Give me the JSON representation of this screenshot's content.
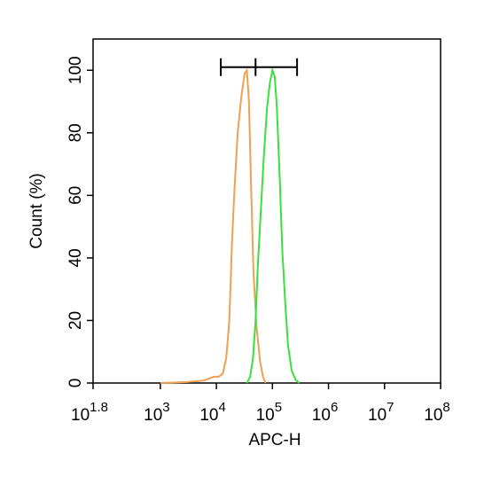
{
  "chart_data": {
    "type": "line",
    "xlabel": "APC-H",
    "ylabel": "Count  (%)",
    "xscale": "log",
    "xlim": [
      63.0957,
      100000000
    ],
    "xticks": [
      {
        "value": 63.0957,
        "label": "10",
        "exponent": "1.8"
      },
      {
        "value": 1000,
        "label": "10",
        "exponent": "3"
      },
      {
        "value": 10000,
        "label": "10",
        "exponent": "4"
      },
      {
        "value": 100000,
        "label": "10",
        "exponent": "5"
      },
      {
        "value": 1000000,
        "label": "10",
        "exponent": "6"
      },
      {
        "value": 10000000,
        "label": "10",
        "exponent": "7"
      },
      {
        "value": 100000000,
        "label": "10",
        "exponent": "8"
      }
    ],
    "ylim": [
      0,
      110
    ],
    "yticks": [
      0,
      20,
      40,
      60,
      80,
      100
    ],
    "gate": {
      "x": [
        12000,
        50000,
        275000
      ],
      "y": 101,
      "color": "#000000"
    },
    "series": [
      {
        "color": "#f0a050",
        "x": [
          1000,
          3000,
          6000,
          9000,
          11000,
          13000,
          15000,
          17000,
          19000,
          21000,
          24000,
          28000,
          32000,
          35000,
          38000,
          42000,
          46000,
          52000,
          60000,
          68000,
          75000
        ],
        "values": [
          0,
          0.3,
          0.8,
          2,
          2,
          3,
          8,
          20,
          45,
          62,
          80,
          92,
          99,
          100,
          90,
          60,
          35,
          18,
          7,
          2,
          0
        ]
      },
      {
        "color": "#3ce03c",
        "x": [
          35000,
          40000,
          45000,
          50000,
          55000,
          62000,
          70000,
          80000,
          90000,
          100000,
          110000,
          120000,
          135000,
          150000,
          170000,
          190000,
          220000,
          260000,
          300000
        ],
        "values": [
          0,
          2,
          8,
          20,
          38,
          55,
          72,
          88,
          96,
          100,
          98,
          88,
          65,
          42,
          25,
          12,
          4,
          1,
          0
        ]
      }
    ]
  }
}
